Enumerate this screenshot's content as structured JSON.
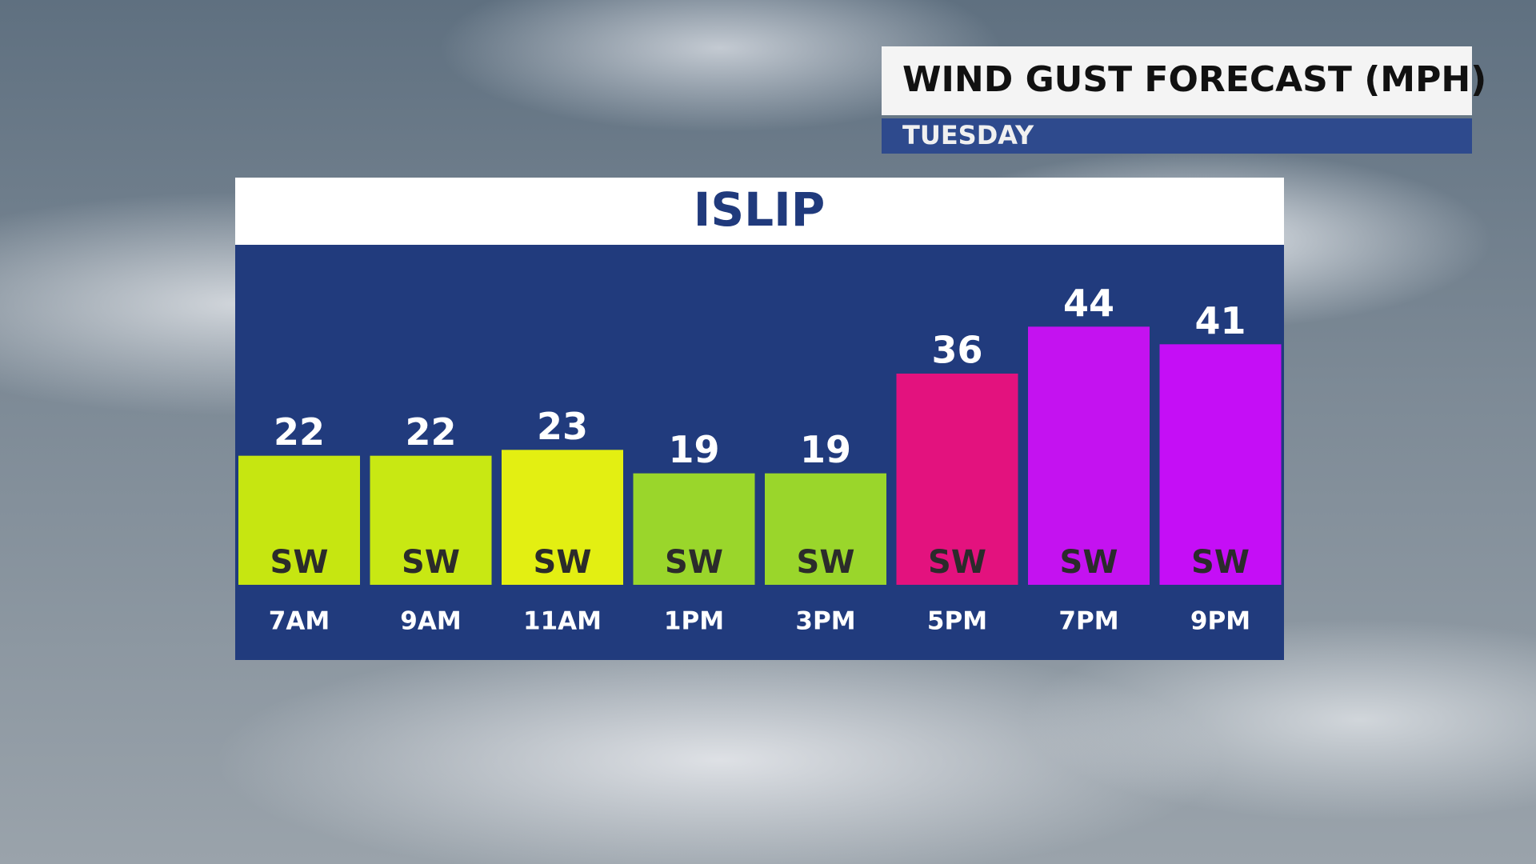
{
  "chart_data": {
    "type": "bar",
    "title": "WIND GUST FORECAST (MPH)",
    "subtitle": "TUESDAY",
    "location": "ISLIP",
    "categories": [
      "7AM",
      "9AM",
      "11AM",
      "1PM",
      "3PM",
      "5PM",
      "7PM",
      "9PM"
    ],
    "values": [
      22,
      22,
      23,
      19,
      19,
      36,
      44,
      41
    ],
    "directions": [
      "SW",
      "SW",
      "SW",
      "SW",
      "SW",
      "SW",
      "SW",
      "SW"
    ],
    "colors": [
      "#c6e611",
      "#c8e813",
      "#e3ef12",
      "#9ad62b",
      "#9ad62b",
      "#e3127e",
      "#c412f0",
      "#c50ef6"
    ],
    "ylim": [
      0,
      48
    ]
  }
}
